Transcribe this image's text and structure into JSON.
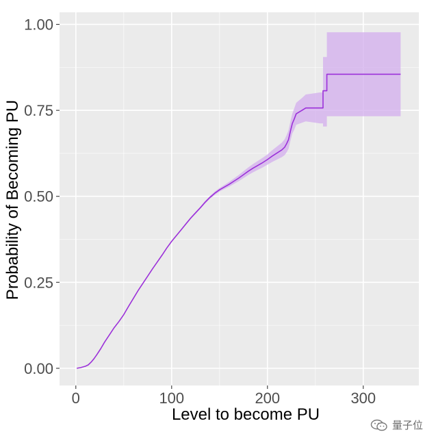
{
  "colors": {
    "panel_background": "#ebebeb",
    "grid_major": "#ffffff",
    "line": "#9b30d9",
    "ribbon": "#d5b1ee",
    "tick_label": "#4d4d4d"
  },
  "watermark": {
    "text": "量子位",
    "icon": "wechat-logo-icon"
  },
  "chart_data": {
    "type": "line",
    "xlabel": "Level to become PU",
    "ylabel": "Probability of Becoming PU",
    "xlim": [
      -17,
      358
    ],
    "ylim": [
      -0.05,
      1.035
    ],
    "x_ticks": [
      0,
      100,
      200,
      300
    ],
    "x_tick_labels": [
      "0",
      "100",
      "200",
      "300"
    ],
    "y_ticks": [
      0,
      0.25,
      0.5,
      0.75,
      1.0
    ],
    "y_tick_labels": [
      "0.00",
      "0.25",
      "0.50",
      "0.75",
      "1.00"
    ],
    "grid": true,
    "legend": "none",
    "series": [
      {
        "x": [
          1,
          5,
          10,
          13,
          16,
          19,
          22,
          26,
          30,
          35,
          40,
          45,
          50,
          55,
          60,
          65,
          70,
          75,
          80,
          85,
          90,
          95,
          100,
          105,
          110,
          115,
          120,
          125,
          130,
          135,
          140,
          145,
          150,
          155,
          160,
          165,
          170,
          175,
          180,
          185,
          190,
          195,
          200,
          205,
          210,
          215,
          218,
          220,
          222,
          224,
          226,
          228,
          230,
          233,
          236,
          240,
          245,
          250,
          255,
          258,
          258,
          262,
          262,
          270,
          280,
          290,
          300,
          310,
          320,
          330,
          339
        ],
        "y": [
          0.0,
          0.002,
          0.006,
          0.01,
          0.018,
          0.028,
          0.04,
          0.057,
          0.076,
          0.097,
          0.118,
          0.136,
          0.156,
          0.18,
          0.203,
          0.226,
          0.247,
          0.268,
          0.289,
          0.309,
          0.329,
          0.35,
          0.369,
          0.386,
          0.403,
          0.42,
          0.437,
          0.452,
          0.467,
          0.483,
          0.497,
          0.509,
          0.519,
          0.527,
          0.535,
          0.544,
          0.553,
          0.563,
          0.573,
          0.582,
          0.59,
          0.598,
          0.607,
          0.617,
          0.626,
          0.635,
          0.643,
          0.653,
          0.665,
          0.69,
          0.712,
          0.725,
          0.74,
          0.745,
          0.75,
          0.757,
          0.757,
          0.757,
          0.757,
          0.757,
          0.807,
          0.807,
          0.855,
          0.855,
          0.855,
          0.855,
          0.855,
          0.855,
          0.855,
          0.855,
          0.855
        ],
        "lower": [
          0.0,
          0.001,
          0.005,
          0.009,
          0.017,
          0.027,
          0.039,
          0.056,
          0.075,
          0.096,
          0.117,
          0.135,
          0.155,
          0.179,
          0.202,
          0.225,
          0.246,
          0.267,
          0.288,
          0.308,
          0.328,
          0.349,
          0.367,
          0.384,
          0.401,
          0.417,
          0.434,
          0.449,
          0.464,
          0.479,
          0.493,
          0.504,
          0.514,
          0.521,
          0.528,
          0.536,
          0.544,
          0.553,
          0.562,
          0.57,
          0.577,
          0.584,
          0.592,
          0.6,
          0.607,
          0.614,
          0.62,
          0.628,
          0.638,
          0.662,
          0.683,
          0.694,
          0.708,
          0.711,
          0.714,
          0.718,
          0.716,
          0.714,
          0.712,
          0.712,
          0.703,
          0.703,
          0.733,
          0.733,
          0.733,
          0.733,
          0.733,
          0.733,
          0.733,
          0.733,
          0.733
        ],
        "upper": [
          0.001,
          0.003,
          0.007,
          0.011,
          0.019,
          0.029,
          0.041,
          0.058,
          0.077,
          0.098,
          0.119,
          0.137,
          0.157,
          0.181,
          0.204,
          0.227,
          0.248,
          0.269,
          0.29,
          0.31,
          0.33,
          0.351,
          0.371,
          0.388,
          0.405,
          0.423,
          0.44,
          0.455,
          0.47,
          0.487,
          0.501,
          0.514,
          0.524,
          0.533,
          0.542,
          0.552,
          0.562,
          0.573,
          0.584,
          0.594,
          0.603,
          0.612,
          0.622,
          0.634,
          0.645,
          0.656,
          0.666,
          0.678,
          0.692,
          0.718,
          0.741,
          0.756,
          0.772,
          0.779,
          0.786,
          0.796,
          0.798,
          0.8,
          0.802,
          0.802,
          0.905,
          0.905,
          0.977,
          0.977,
          0.977,
          0.977,
          0.977,
          0.977,
          0.977,
          0.977,
          0.977
        ]
      }
    ]
  }
}
